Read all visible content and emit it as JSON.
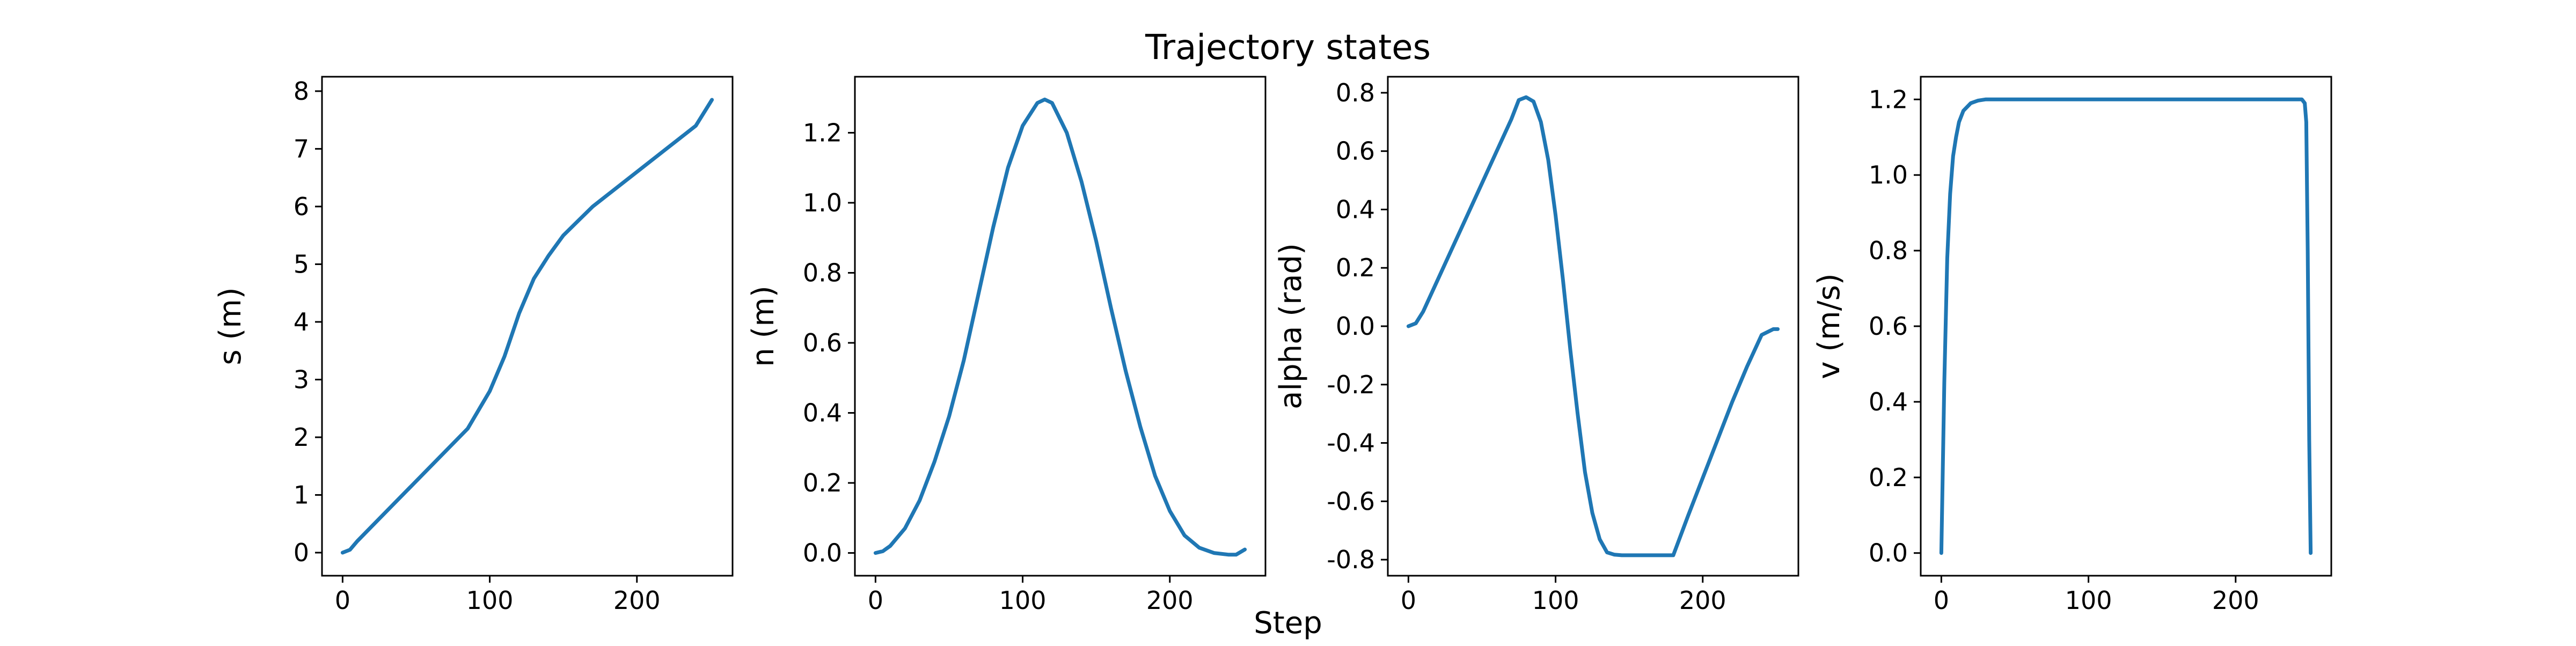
{
  "figure": {
    "title": "Trajectory states",
    "xlabel": "Step",
    "line_color": "#1f77b4",
    "axis_color": "#000000",
    "background": "#ffffff"
  },
  "chart_data": [
    {
      "type": "line",
      "ylabel": "s (m)",
      "xlim": [
        -14,
        265
      ],
      "ylim": [
        -0.4,
        8.25
      ],
      "xticks": [
        0,
        100,
        200
      ],
      "yticks": [
        0,
        1,
        2,
        3,
        4,
        5,
        6,
        7,
        8
      ],
      "grid": false,
      "series": [
        {
          "x": [
            0,
            5,
            10,
            30,
            50,
            70,
            85,
            100,
            110,
            120,
            130,
            140,
            150,
            160,
            170,
            180,
            200,
            220,
            240,
            251
          ],
          "y": [
            0,
            0.05,
            0.2,
            0.72,
            1.24,
            1.76,
            2.15,
            2.8,
            3.4,
            4.15,
            4.75,
            5.15,
            5.5,
            5.75,
            6.0,
            6.2,
            6.6,
            7.0,
            7.4,
            7.85
          ]
        }
      ]
    },
    {
      "type": "line",
      "ylabel": "n (m)",
      "xlim": [
        -14,
        265
      ],
      "ylim": [
        -0.065,
        1.36
      ],
      "xticks": [
        0,
        100,
        200
      ],
      "yticks": [
        0.0,
        0.2,
        0.4,
        0.6,
        0.8,
        1.0,
        1.2
      ],
      "grid": false,
      "series": [
        {
          "x": [
            0,
            5,
            10,
            20,
            30,
            40,
            50,
            60,
            70,
            80,
            90,
            100,
            110,
            115,
            120,
            130,
            140,
            150,
            160,
            170,
            180,
            190,
            200,
            210,
            220,
            230,
            240,
            245,
            251
          ],
          "y": [
            0,
            0.005,
            0.02,
            0.07,
            0.15,
            0.26,
            0.39,
            0.55,
            0.74,
            0.93,
            1.1,
            1.22,
            1.285,
            1.295,
            1.285,
            1.2,
            1.06,
            0.89,
            0.7,
            0.52,
            0.36,
            0.22,
            0.12,
            0.05,
            0.015,
            0.0,
            -0.005,
            -0.005,
            0.01
          ]
        }
      ]
    },
    {
      "type": "line",
      "ylabel": "alpha (rad)",
      "xlim": [
        -14,
        265
      ],
      "ylim": [
        -0.855,
        0.855
      ],
      "xticks": [
        0,
        100,
        200
      ],
      "yticks": [
        -0.8,
        -0.6,
        -0.4,
        -0.2,
        0.0,
        0.2,
        0.4,
        0.6,
        0.8
      ],
      "grid": false,
      "series": [
        {
          "x": [
            0,
            5,
            10,
            20,
            30,
            40,
            50,
            60,
            70,
            75,
            80,
            85,
            90,
            95,
            100,
            105,
            110,
            115,
            120,
            125,
            130,
            135,
            140,
            145,
            150,
            160,
            170,
            180,
            190,
            200,
            210,
            220,
            230,
            240,
            248,
            251
          ],
          "y": [
            0,
            0.01,
            0.05,
            0.16,
            0.27,
            0.38,
            0.49,
            0.6,
            0.71,
            0.775,
            0.785,
            0.77,
            0.7,
            0.57,
            0.38,
            0.16,
            -0.08,
            -0.3,
            -0.5,
            -0.64,
            -0.73,
            -0.775,
            -0.783,
            -0.785,
            -0.785,
            -0.785,
            -0.785,
            -0.785,
            -0.65,
            -0.52,
            -0.39,
            -0.26,
            -0.14,
            -0.03,
            -0.01,
            -0.01
          ]
        }
      ]
    },
    {
      "type": "line",
      "ylabel": "v (m/s)",
      "xlim": [
        -14,
        265
      ],
      "ylim": [
        -0.06,
        1.26
      ],
      "xticks": [
        0,
        100,
        200
      ],
      "yticks": [
        0.0,
        0.2,
        0.4,
        0.6,
        0.8,
        1.0,
        1.2
      ],
      "grid": false,
      "series": [
        {
          "x": [
            0,
            2,
            4,
            6,
            8,
            10,
            12,
            15,
            20,
            25,
            30,
            40,
            60,
            100,
            150,
            200,
            240,
            245,
            247,
            248,
            249,
            250,
            251
          ],
          "y": [
            0,
            0.45,
            0.78,
            0.95,
            1.05,
            1.1,
            1.14,
            1.17,
            1.19,
            1.197,
            1.2,
            1.2,
            1.2,
            1.2,
            1.2,
            1.2,
            1.2,
            1.2,
            1.19,
            1.14,
            0.8,
            0.3,
            0
          ]
        }
      ]
    }
  ]
}
